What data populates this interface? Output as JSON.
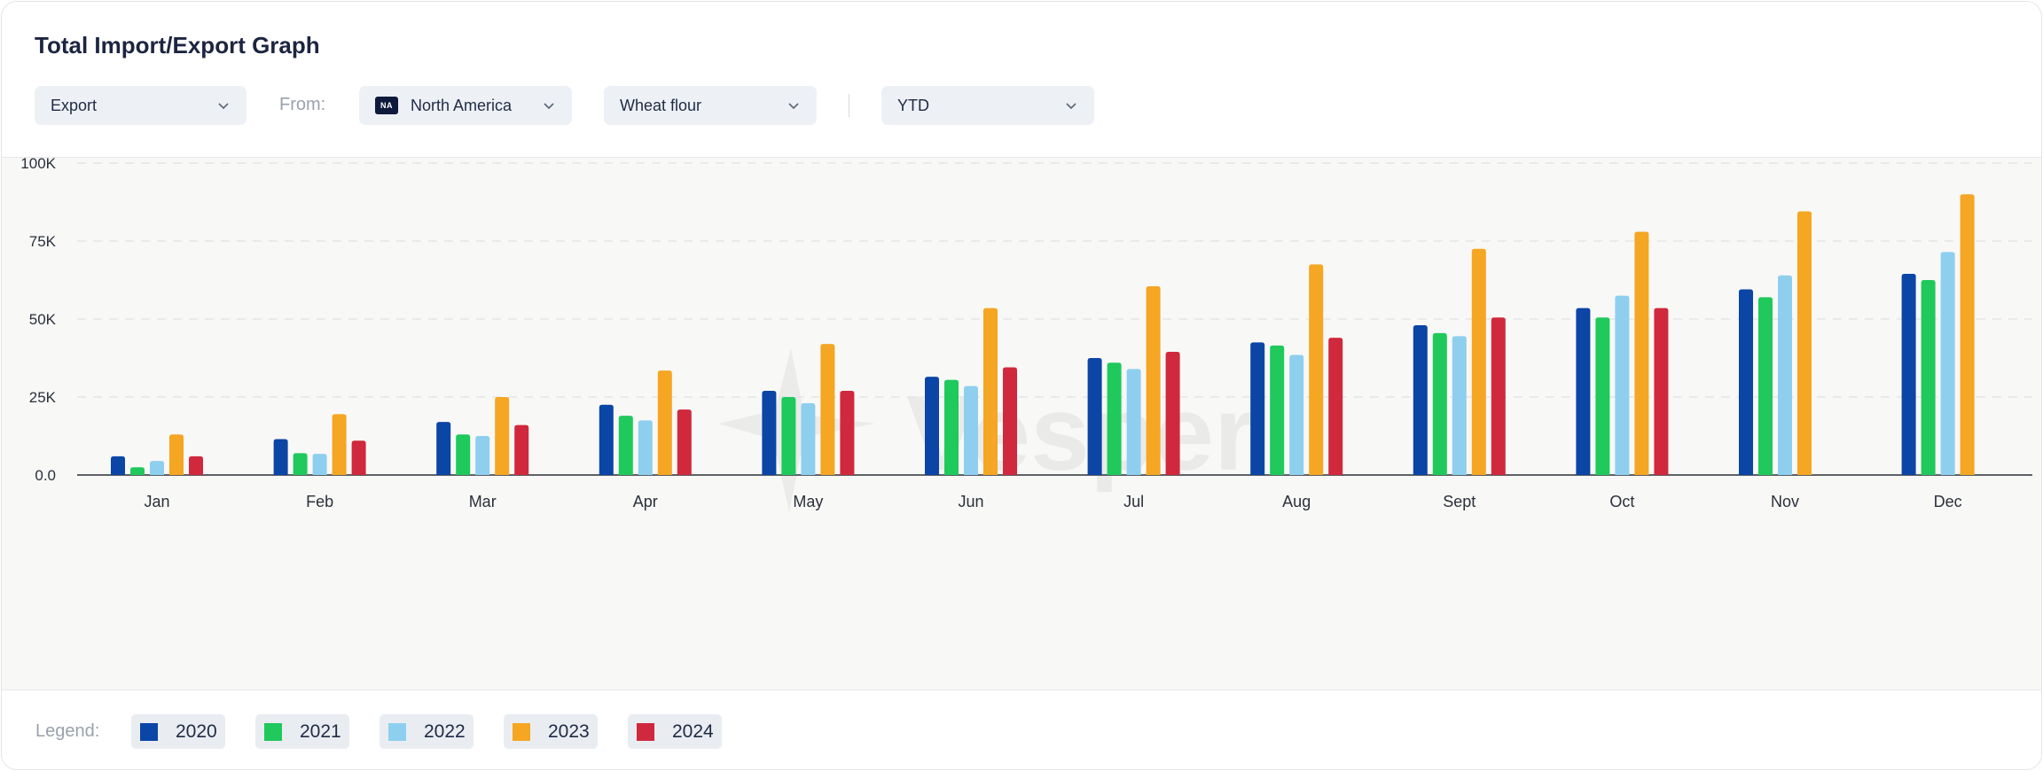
{
  "header": {
    "title": "Total Import/Export Graph"
  },
  "filters": {
    "flow": "Export",
    "from_label": "From:",
    "region_code": "NA",
    "region": "North America",
    "product": "Wheat flour",
    "period": "YTD"
  },
  "watermark": "Vesper",
  "legend": {
    "label": "Legend:",
    "items": [
      {
        "name": "2020",
        "color": "#0b45a6"
      },
      {
        "name": "2021",
        "color": "#1fc95c"
      },
      {
        "name": "2022",
        "color": "#8ecfef"
      },
      {
        "name": "2023",
        "color": "#f5a623"
      },
      {
        "name": "2024",
        "color": "#d0283c"
      }
    ]
  },
  "chart_data": {
    "type": "bar",
    "categories": [
      "Jan",
      "Feb",
      "Mar",
      "Apr",
      "May",
      "Jun",
      "Jul",
      "Aug",
      "Sept",
      "Oct",
      "Nov",
      "Dec"
    ],
    "ylim": [
      0,
      100000
    ],
    "yticks": [
      {
        "value": 0,
        "label": "0.0"
      },
      {
        "value": 25000,
        "label": "25K"
      },
      {
        "value": 50000,
        "label": "50K"
      },
      {
        "value": 75000,
        "label": "75K"
      },
      {
        "value": 100000,
        "label": "100K"
      }
    ],
    "grid": true,
    "series": [
      {
        "name": "2020",
        "color": "#0b45a6",
        "values": [
          6000,
          11500,
          17000,
          22500,
          27000,
          31500,
          37500,
          42500,
          48000,
          53500,
          59500,
          64500
        ]
      },
      {
        "name": "2021",
        "color": "#1fc95c",
        "values": [
          2500,
          7000,
          13000,
          19000,
          25000,
          30500,
          36000,
          41500,
          45500,
          50500,
          57000,
          62500
        ]
      },
      {
        "name": "2022",
        "color": "#8ecfef",
        "values": [
          4500,
          6800,
          12500,
          17500,
          23000,
          28500,
          34000,
          38500,
          44500,
          57500,
          64000,
          71500
        ]
      },
      {
        "name": "2023",
        "color": "#f5a623",
        "values": [
          13000,
          19500,
          25000,
          33500,
          42000,
          53500,
          60500,
          67500,
          72500,
          78000,
          84500,
          90000
        ]
      },
      {
        "name": "2024",
        "color": "#d0283c",
        "values": [
          6000,
          11000,
          16000,
          21000,
          27000,
          34500,
          39500,
          44000,
          50500,
          53500,
          null,
          null
        ]
      }
    ]
  }
}
